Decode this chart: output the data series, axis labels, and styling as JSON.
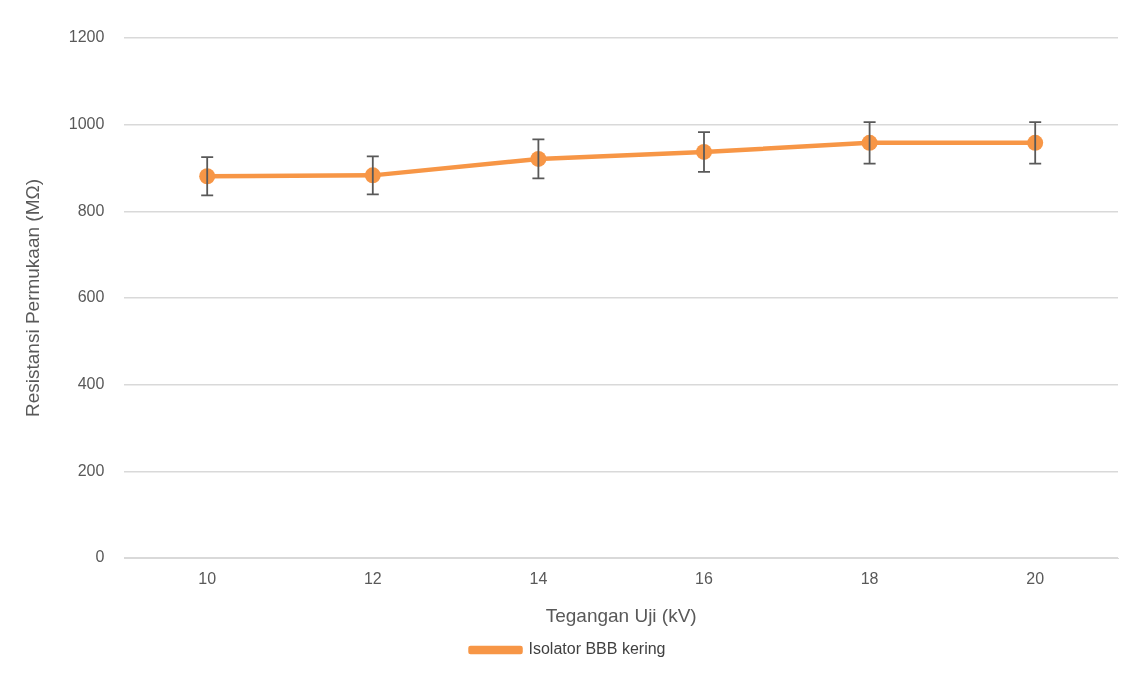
{
  "chart_data": {
    "type": "line",
    "xlabel": "Tegangan Uji (kV)",
    "ylabel": "Resistansi Permukaan (MΩ)",
    "categories": [
      "10",
      "12",
      "14",
      "16",
      "18",
      "20"
    ],
    "series": [
      {
        "name": "Isolator BBB kering",
        "color": "#f79646",
        "values": [
          881,
          883,
          921,
          937,
          958,
          958
        ],
        "errors": [
          44,
          44,
          45,
          46,
          48,
          48
        ]
      }
    ],
    "ylim": [
      0,
      1200
    ],
    "yticks": [
      0,
      200,
      400,
      600,
      800,
      1000,
      1200
    ],
    "grid": "y",
    "legend": "bottom",
    "marker": "circle",
    "line_style": "solid"
  }
}
